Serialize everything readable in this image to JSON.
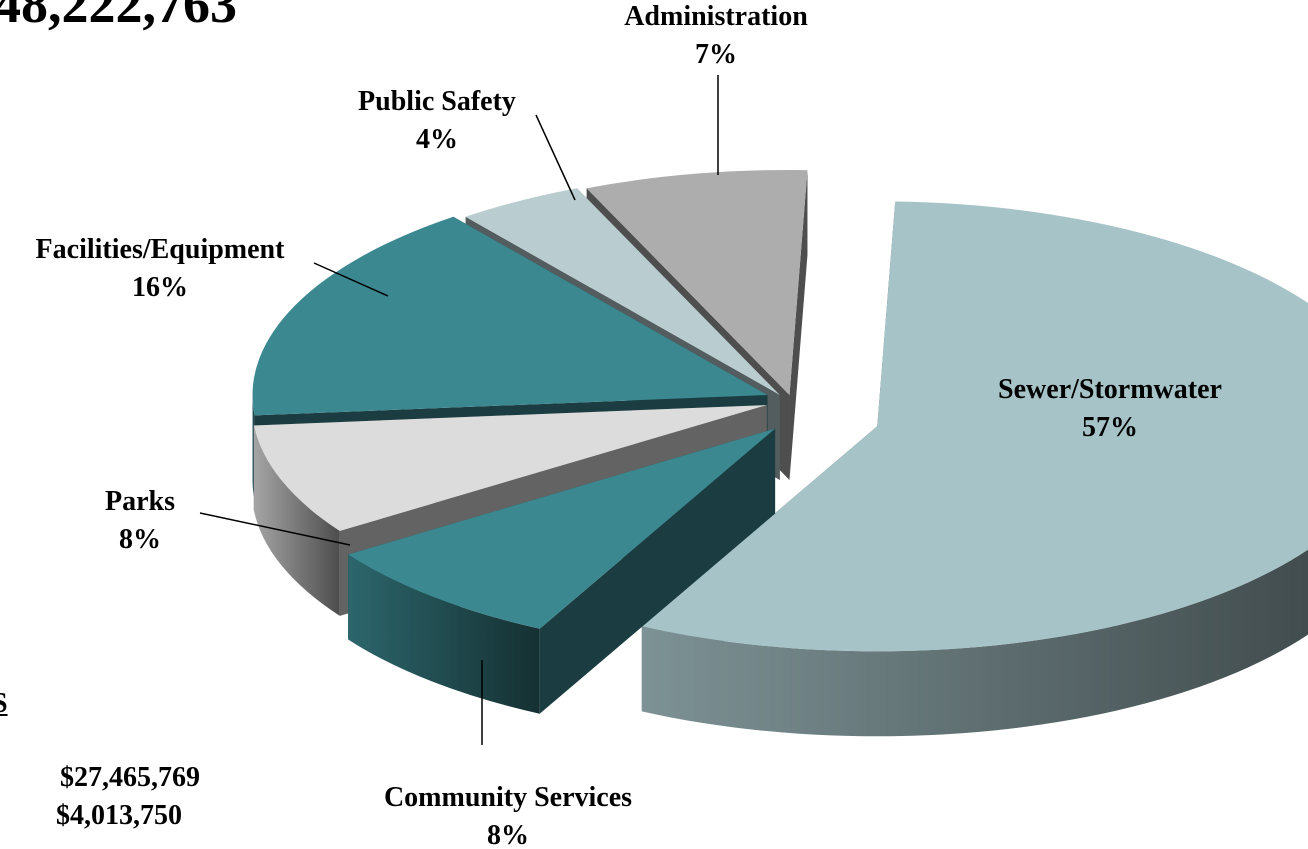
{
  "header_amount": "48,222,763",
  "side_heading": "S",
  "side_amounts": [
    "$27,465,769",
    "$4,013,750"
  ],
  "chart_data": {
    "type": "pie",
    "exploded": true,
    "three_d": true,
    "slices": [
      {
        "label": "Sewer/Stormwater",
        "percent": "57%",
        "value": 57,
        "color": "#a6c3c7"
      },
      {
        "label": "Community Services",
        "percent": "8%",
        "value": 8,
        "color": "#3b8890"
      },
      {
        "label": "Parks",
        "percent": "8%",
        "value": 8,
        "color": "#dcdcdc"
      },
      {
        "label": "Facilities/Equipment",
        "percent": "16%",
        "value": 16,
        "color": "#3b8890"
      },
      {
        "label": "Public Safety",
        "percent": "4%",
        "value": 4,
        "color": "#b9cdd0"
      },
      {
        "label": "Administration",
        "percent": "7%",
        "value": 7,
        "color": "#adadad"
      }
    ]
  }
}
